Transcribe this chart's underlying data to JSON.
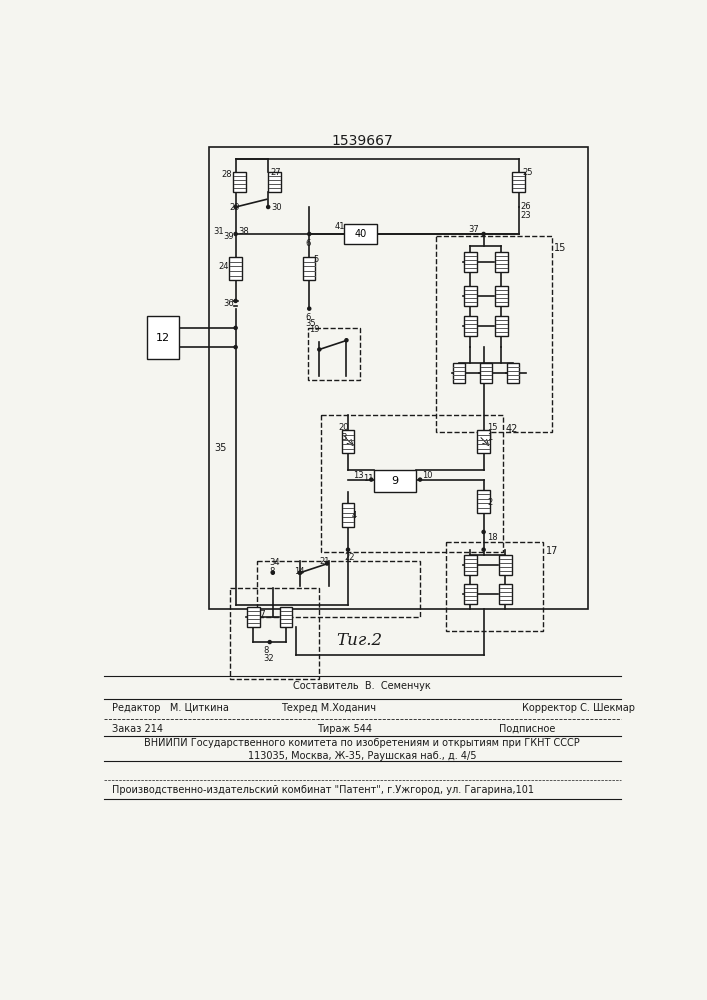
{
  "title": "1539667",
  "fig_label": "Τиг.2",
  "bg_color": "#f5f5f0",
  "line_color": "#1a1a1a",
  "footer_line0": "Составитель  В.  Семенчук",
  "footer_line1a": "Редактор   М. Циткина",
  "footer_line1b": "Техред М.Ходанич",
  "footer_line1c": "Корректор С. Шекмар",
  "footer_line2a": "Заказ 214",
  "footer_line2b": "Тираж 544",
  "footer_line2c": "Подписное",
  "footer_line3": "ВНИИПИ Государственного комитета по изобретениям и открытиям при ГКНТ СССР",
  "footer_line4": "113035, Москва, Ж-35, Раушская наб., д. 4/5",
  "footer_line5": "Производственно-издательский комбинат \"Патент\", г.Ужгород, ул. Гагарина,101"
}
